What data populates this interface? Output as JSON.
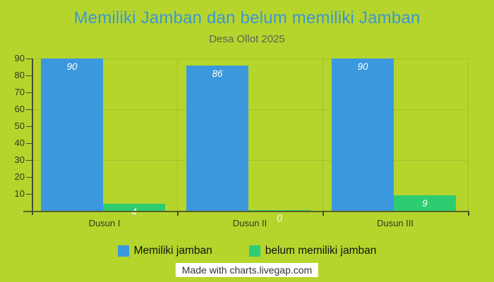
{
  "header": {
    "title": "Memiliki Jamban dan belum memiliki Jamban",
    "subtitle": "Desa Ollot 2025"
  },
  "footer": {
    "credit": "Made with charts.livegap.com"
  },
  "chart_data": {
    "type": "bar",
    "title": "Memiliki Jamban dan belum memiliki Jamban",
    "subtitle": "Desa Ollot 2025",
    "categories": [
      "Dusun I",
      "Dusun II",
      "Dusun III"
    ],
    "series": [
      {
        "name": "Memiliki jamban",
        "color": "#3b98dd",
        "values": [
          90,
          86,
          90
        ]
      },
      {
        "name": "belum memiliki jamban",
        "color": "#2ecc71",
        "values": [
          4,
          0,
          9
        ]
      }
    ],
    "ylim": [
      0,
      90
    ],
    "y_ticks": [
      10,
      20,
      30,
      40,
      50,
      60,
      70,
      80,
      90
    ],
    "gridline_values": [
      30,
      60,
      90
    ],
    "grid": "horizontal lines at 30/60/90 plus vertical category separators",
    "legend_position": "bottom",
    "value_label_style": "white italic, inside top of bar"
  },
  "colors": {
    "background": "#b5d52c",
    "title": "#3e96d3",
    "subtitle": "#5f6253",
    "axis_text": "#343a20",
    "grid": "#a6c02e",
    "axis_line": "#5a6320",
    "tick": "#474d2b",
    "legend_text": "#121212",
    "credit_bg": "#ffffff",
    "credit_text": "#333333"
  }
}
